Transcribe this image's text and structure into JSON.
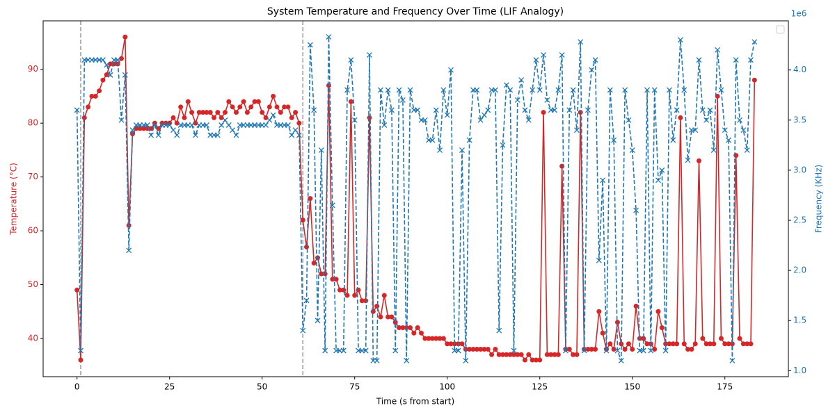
{
  "chart_data": {
    "type": "line",
    "title": "System Temperature and Frequency Over Time (LIF Analogy)",
    "x_label": "Time (s from start)",
    "y_label": "Temperature (°C)",
    "y2_label": "Frequency (KHz)",
    "y2_offset_text": "1e6",
    "x": [
      0,
      1,
      2,
      3,
      4,
      5,
      6,
      7,
      8,
      9,
      10,
      11,
      12,
      13,
      14,
      15,
      16,
      17,
      18,
      19,
      20,
      21,
      22,
      23,
      24,
      25,
      26,
      27,
      28,
      29,
      30,
      31,
      32,
      33,
      34,
      35,
      36,
      37,
      38,
      39,
      40,
      41,
      42,
      43,
      44,
      45,
      46,
      47,
      48,
      49,
      50,
      51,
      52,
      53,
      54,
      55,
      56,
      57,
      58,
      59,
      60,
      61,
      62,
      63,
      64,
      65,
      66,
      67,
      68,
      69,
      70,
      71,
      72,
      73,
      74,
      75,
      76,
      77,
      78,
      79,
      80,
      81,
      82,
      83,
      84,
      85,
      86,
      87,
      88,
      89,
      90,
      91,
      92,
      93,
      94,
      95,
      96,
      97,
      98,
      99,
      100,
      101,
      102,
      103,
      104,
      105,
      106,
      107,
      108,
      109,
      110,
      111,
      112,
      113,
      114,
      115,
      116,
      117,
      118,
      119,
      120,
      121,
      122,
      123,
      124,
      125,
      126,
      127,
      128,
      129,
      130,
      131,
      132,
      133,
      134,
      135,
      136,
      137,
      138,
      139,
      140,
      141,
      142,
      143,
      144,
      145,
      146,
      147,
      148,
      149,
      150,
      151,
      152,
      153,
      154,
      155,
      156,
      157,
      158,
      159,
      160,
      161,
      162,
      163,
      164,
      165,
      166,
      167,
      168,
      169,
      170,
      171,
      172,
      173,
      174,
      175,
      176,
      177,
      178,
      179,
      180,
      181,
      182,
      183
    ],
    "series": [
      {
        "color": "#d62728",
        "marker": "circle",
        "linestyle": "solid",
        "values": [
          49,
          36,
          81,
          83,
          85,
          85,
          86,
          88,
          89,
          91,
          91,
          91,
          92,
          96,
          61,
          78,
          79,
          79,
          79,
          79,
          79,
          80,
          79,
          80,
          80,
          80,
          81,
          80,
          83,
          81,
          84,
          82,
          80,
          82,
          82,
          82,
          82,
          81,
          82,
          81,
          82,
          84,
          83,
          82,
          83,
          84,
          82,
          83,
          84,
          84,
          82,
          81,
          83,
          85,
          83,
          82,
          83,
          83,
          81,
          82,
          80,
          62,
          57,
          66,
          54,
          55,
          52,
          52,
          87,
          51,
          51,
          49,
          49,
          48,
          84,
          48,
          49,
          47,
          47,
          81,
          45,
          46,
          44,
          48,
          44,
          44,
          43,
          42,
          42,
          42,
          42,
          41,
          42,
          41,
          40,
          40,
          40,
          40,
          40,
          40,
          39,
          39,
          39,
          39,
          39,
          38,
          38,
          38,
          38,
          38,
          38,
          38,
          37,
          38,
          37,
          37,
          37,
          37,
          37,
          37,
          37,
          36,
          37,
          36,
          36,
          36,
          82,
          37,
          37,
          37,
          37,
          72,
          38,
          38,
          37,
          37,
          82,
          38,
          38,
          38,
          38,
          45,
          41,
          38,
          39,
          38,
          43,
          39,
          38,
          39,
          38,
          46,
          40,
          40,
          39,
          39,
          38,
          45,
          42,
          39,
          39,
          39,
          39,
          81,
          39,
          38,
          38,
          39,
          73,
          40,
          39,
          39,
          39,
          85,
          40,
          39,
          39,
          39,
          74,
          40,
          39,
          39,
          39,
          88
        ]
      },
      {
        "color": "#1f77b4",
        "marker": "x",
        "linestyle": "dashed",
        "axis": "y2",
        "values": [
          3600000,
          1200000,
          4100000,
          4100000,
          4100000,
          4100000,
          4100000,
          4100000,
          4050000,
          3950000,
          4100000,
          4100000,
          3500000,
          3950000,
          2200000,
          3400000,
          3450000,
          3450000,
          3450000,
          3450000,
          3350000,
          3450000,
          3350000,
          3450000,
          3450000,
          3450000,
          3400000,
          3350000,
          3450000,
          3450000,
          3450000,
          3450000,
          3350000,
          3450000,
          3450000,
          3450000,
          3350000,
          3350000,
          3350000,
          3450000,
          3500000,
          3450000,
          3400000,
          3350000,
          3450000,
          3450000,
          3450000,
          3450000,
          3450000,
          3450000,
          3450000,
          3450000,
          3500000,
          3550000,
          3450000,
          3450000,
          3450000,
          3450000,
          3350000,
          3400000,
          3350000,
          1400000,
          1700000,
          4250000,
          3600000,
          1500000,
          3200000,
          1200000,
          4330000,
          2650000,
          1200000,
          1200000,
          1200000,
          3800000,
          4100000,
          3500000,
          1200000,
          1200000,
          1200000,
          4150000,
          1100000,
          1100000,
          3800000,
          3450000,
          3800000,
          3600000,
          1200000,
          3800000,
          3700000,
          1100000,
          3800000,
          3600000,
          3600000,
          3500000,
          3500000,
          3300000,
          3300000,
          3600000,
          3200000,
          3800000,
          3550000,
          4000000,
          1200000,
          1200000,
          3200000,
          1100000,
          3300000,
          3800000,
          3800000,
          3500000,
          3550000,
          3600000,
          3800000,
          3800000,
          1400000,
          3250000,
          3850000,
          3800000,
          1200000,
          3700000,
          3900000,
          3600000,
          3500000,
          3800000,
          4100000,
          3800000,
          4150000,
          3700000,
          3600000,
          3600000,
          3800000,
          4150000,
          1200000,
          3600000,
          3800000,
          3400000,
          4280000,
          1200000,
          3600000,
          4000000,
          4100000,
          2100000,
          2900000,
          1200000,
          3800000,
          3300000,
          1200000,
          1100000,
          3800000,
          3500000,
          3200000,
          2600000,
          1200000,
          1200000,
          3800000,
          1200000,
          3800000,
          2900000,
          3000000,
          1200000,
          3800000,
          3300000,
          3600000,
          4300000,
          3800000,
          3100000,
          3400000,
          3400000,
          4100000,
          3600000,
          3500000,
          3600000,
          3200000,
          4200000,
          3800000,
          3400000,
          3300000,
          1100000,
          4100000,
          3500000,
          3400000,
          3200000,
          4100000,
          4280000
        ]
      }
    ],
    "vlines": [
      1,
      61
    ],
    "vline_color": "#999999",
    "xlim": [
      -9.15,
      192.15
    ],
    "xticks": [
      0,
      25,
      50,
      75,
      100,
      125,
      150,
      175
    ],
    "ylim": [
      32.9,
      99.0
    ],
    "yticks": [
      40,
      50,
      60,
      70,
      80,
      90
    ],
    "y2lim": [
      940000,
      4490000
    ],
    "y2ticks": [
      {
        "value": 1000000,
        "label": "1.0"
      },
      {
        "value": 1500000,
        "label": "1.5"
      },
      {
        "value": 2000000,
        "label": "2.0"
      },
      {
        "value": 2500000,
        "label": "2.5"
      },
      {
        "value": 3000000,
        "label": "3.0"
      },
      {
        "value": 3500000,
        "label": "3.5"
      },
      {
        "value": 4000000,
        "label": "4.0"
      }
    ]
  }
}
